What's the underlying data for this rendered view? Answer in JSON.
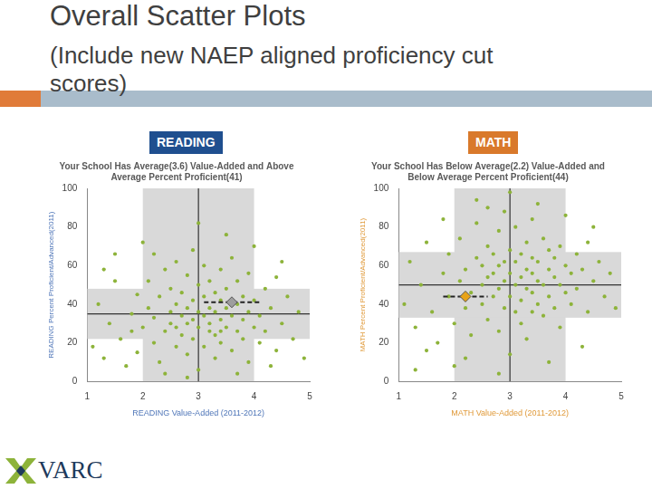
{
  "title": "Overall Scatter Plots",
  "subtitle": [
    "(Include new NAEP aligned proficiency cut",
    "scores)"
  ],
  "logo": "VARC",
  "chart_data": [
    {
      "type": "scatter",
      "badge": "READING",
      "title": [
        "Your School Has Average(3.6) Value-Added and Above",
        "Average Percent Proficient(41)"
      ],
      "x_label": "READING Value-Added (2011-2012)",
      "y_label": "READING Percent Proficient/Advanced(2011)",
      "xlim": [
        1,
        5
      ],
      "xticks": [
        1,
        2,
        3,
        4,
        5
      ],
      "ylim": [
        0,
        100
      ],
      "yticks": [
        0,
        20,
        40,
        60,
        80,
        100
      ],
      "grid": false,
      "color": "#8db33a",
      "band_x": [
        2,
        4
      ],
      "band_y": [
        22,
        48
      ],
      "average_x": 3,
      "average_y": 35,
      "school": {
        "x": 3.6,
        "y": 41,
        "ci": [
          3.1,
          4.1
        ],
        "color": "#9e9e9e",
        "marker": "diamond"
      },
      "x": [
        1.1,
        1.2,
        1.3,
        1.4,
        1.5,
        1.6,
        1.7,
        1.8,
        1.9,
        1.9,
        2.0,
        2.1,
        2.1,
        2.2,
        2.2,
        2.3,
        2.3,
        2.4,
        2.4,
        2.5,
        2.5,
        2.5,
        2.6,
        2.6,
        2.6,
        2.7,
        2.7,
        2.7,
        2.8,
        2.8,
        2.8,
        2.8,
        2.9,
        2.9,
        2.9,
        2.9,
        3.0,
        3.0,
        3.0,
        3.0,
        3.1,
        3.1,
        3.1,
        3.1,
        3.2,
        3.2,
        3.2,
        3.2,
        3.3,
        3.3,
        3.3,
        3.3,
        3.4,
        3.4,
        3.4,
        3.4,
        3.5,
        3.5,
        3.5,
        3.6,
        3.6,
        3.6,
        3.7,
        3.7,
        3.7,
        3.8,
        3.8,
        3.8,
        3.9,
        3.9,
        3.9,
        4.0,
        4.0,
        4.1,
        4.1,
        4.2,
        4.2,
        4.3,
        4.4,
        4.4,
        4.5,
        4.6,
        4.7,
        4.8,
        4.9,
        1.5,
        2.0,
        2.4,
        3.0,
        3.5,
        4.0,
        4.5,
        1.3,
        2.2,
        2.8,
        3.7,
        4.3,
        1.8,
        2.6,
        3.4
      ],
      "values": [
        18,
        40,
        12,
        30,
        52,
        22,
        8,
        35,
        45,
        15,
        28,
        38,
        52,
        20,
        33,
        44,
        10,
        26,
        58,
        36,
        30,
        48,
        18,
        40,
        62,
        24,
        34,
        46,
        14,
        30,
        38,
        55,
        22,
        32,
        42,
        68,
        28,
        36,
        50,
        6,
        18,
        34,
        44,
        60,
        26,
        38,
        30,
        52,
        12,
        36,
        46,
        24,
        32,
        42,
        58,
        20,
        28,
        38,
        48,
        16,
        34,
        64,
        26,
        40,
        52,
        22,
        32,
        44,
        10,
        36,
        56,
        28,
        42,
        20,
        34,
        48,
        26,
        38,
        16,
        54,
        30,
        44,
        22,
        36,
        12,
        66,
        72,
        4,
        82,
        76,
        70,
        62,
        58,
        66,
        2,
        4,
        8,
        26,
        28,
        26
      ]
    },
    {
      "type": "scatter",
      "badge": "MATH",
      "title": [
        "Your School Has Below Average(2.2) Value-Added and",
        "Below Average Percent Proficient(44)"
      ],
      "x_label": "MATH Value-Added (2011-2012)",
      "y_label": "MATH Percent Proficient/Advanced(2011)",
      "xlim": [
        1,
        5
      ],
      "xticks": [
        1,
        2,
        3,
        4,
        5
      ],
      "ylim": [
        0,
        100
      ],
      "yticks": [
        0,
        20,
        40,
        60,
        80,
        100
      ],
      "grid": false,
      "color": "#8db33a",
      "band_x": [
        2,
        4
      ],
      "band_y": [
        33,
        67
      ],
      "average_x": 3,
      "average_y": 50,
      "school": {
        "x": 2.2,
        "y": 44,
        "ci": [
          1.8,
          2.6
        ],
        "color": "#e8a317",
        "marker": "diamond"
      },
      "x": [
        1.1,
        1.2,
        1.3,
        1.4,
        1.5,
        1.6,
        1.7,
        1.8,
        1.9,
        1.9,
        2.0,
        2.1,
        2.1,
        2.2,
        2.2,
        2.3,
        2.3,
        2.4,
        2.4,
        2.5,
        2.5,
        2.5,
        2.6,
        2.6,
        2.6,
        2.7,
        2.7,
        2.7,
        2.8,
        2.8,
        2.8,
        2.8,
        2.9,
        2.9,
        2.9,
        2.9,
        3.0,
        3.0,
        3.0,
        3.0,
        3.1,
        3.1,
        3.1,
        3.1,
        3.2,
        3.2,
        3.2,
        3.2,
        3.3,
        3.3,
        3.3,
        3.3,
        3.4,
        3.4,
        3.4,
        3.4,
        3.5,
        3.5,
        3.5,
        3.6,
        3.6,
        3.6,
        3.7,
        3.7,
        3.7,
        3.8,
        3.8,
        3.8,
        3.9,
        3.9,
        3.9,
        4.0,
        4.0,
        4.1,
        4.1,
        4.2,
        4.2,
        4.3,
        4.4,
        4.4,
        4.5,
        4.6,
        4.7,
        4.8,
        4.9,
        1.5,
        2.0,
        2.4,
        3.0,
        3.5,
        4.0,
        4.5,
        1.3,
        2.2,
        2.8,
        3.7,
        4.3,
        1.8,
        2.6,
        3.4
      ],
      "values": [
        40,
        62,
        28,
        50,
        72,
        36,
        20,
        56,
        44,
        66,
        30,
        52,
        74,
        38,
        58,
        46,
        24,
        64,
        82,
        50,
        40,
        60,
        32,
        54,
        70,
        44,
        56,
        66,
        26,
        48,
        60,
        78,
        38,
        52,
        62,
        88,
        44,
        56,
        68,
        14,
        36,
        50,
        62,
        80,
        42,
        54,
        66,
        30,
        48,
        58,
        72,
        22,
        46,
        56,
        64,
        84,
        40,
        52,
        62,
        34,
        50,
        74,
        44,
        58,
        68,
        38,
        54,
        64,
        28,
        50,
        70,
        46,
        60,
        40,
        56,
        66,
        48,
        58,
        36,
        72,
        52,
        62,
        44,
        56,
        38,
        16,
        8,
        94,
        98,
        92,
        86,
        80,
        6,
        12,
        4,
        10,
        18,
        84,
        90,
        36
      ]
    }
  ]
}
